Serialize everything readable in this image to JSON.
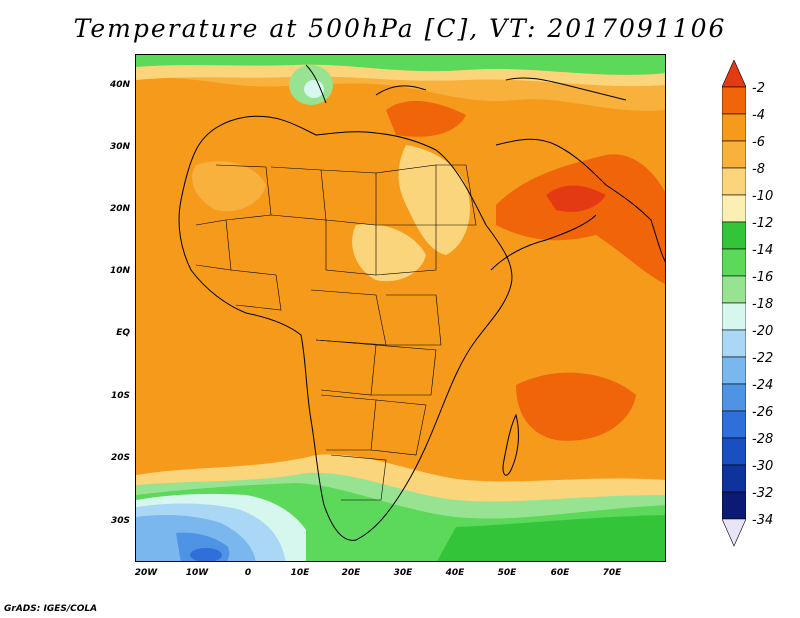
{
  "title": "Temperature at 500hPa [C], VT: 2017091106",
  "footer": "GrADS: IGES/COLA",
  "map": {
    "lat_labels": [
      "40N",
      "30N",
      "20N",
      "10N",
      "EQ",
      "10S",
      "20S",
      "30S"
    ],
    "lon_labels": [
      "20W",
      "10W",
      "0",
      "10E",
      "20E",
      "30E",
      "40E",
      "50E",
      "60E",
      "70E"
    ]
  },
  "colorbar": {
    "labels": [
      "-2",
      "-4",
      "-6",
      "-8",
      "-10",
      "-12",
      "-14",
      "-16",
      "-18",
      "-20",
      "-22",
      "-24",
      "-26",
      "-28",
      "-30",
      "-32",
      "-34"
    ],
    "colors": [
      "#e33a14",
      "#f0640a",
      "#f59a1a",
      "#f7b13c",
      "#fbd57b",
      "#fbefb4",
      "#34c43a",
      "#5cd85a",
      "#98e392",
      "#d6f7ee",
      "#a9d7f5",
      "#7ab7ee",
      "#4f93e5",
      "#2f6fd9",
      "#1a4fc2",
      "#0f339c",
      "#0b1a73",
      "#e9e5f9"
    ]
  }
}
